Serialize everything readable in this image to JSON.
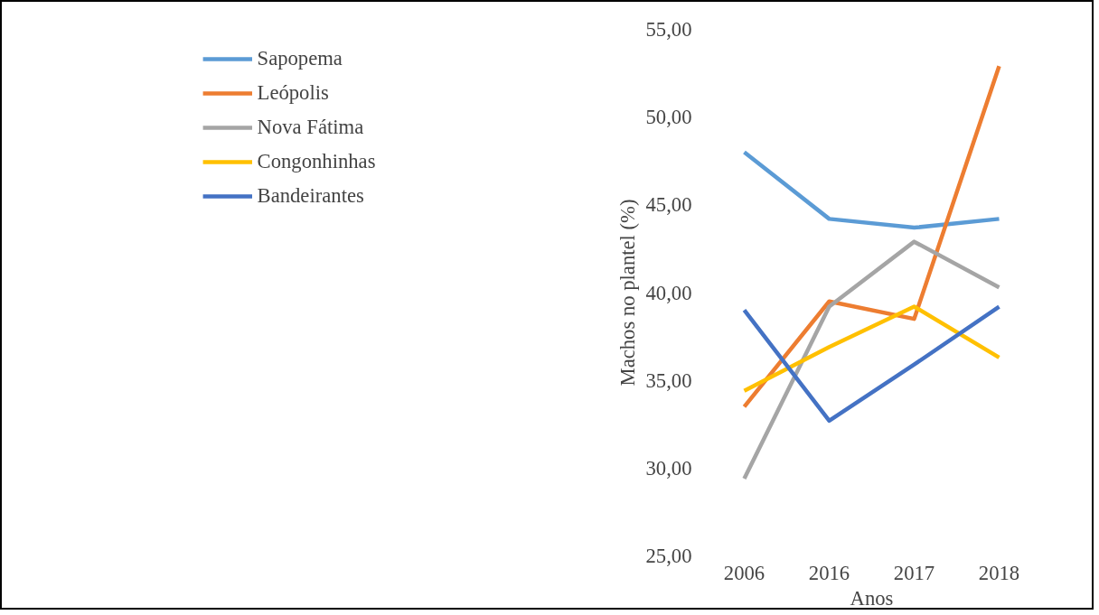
{
  "chart_data": {
    "type": "line",
    "xlabel": "Anos",
    "ylabel": "Machos no plantel (%)",
    "categories": [
      "2006",
      "2016",
      "2017",
      "2018"
    ],
    "series": [
      {
        "name": "Sapopema",
        "color": "#5b9bd5",
        "values": [
          48.0,
          44.2,
          43.7,
          44.2
        ]
      },
      {
        "name": "Leópolis",
        "color": "#ed7d31",
        "values": [
          33.5,
          39.5,
          38.5,
          52.9
        ]
      },
      {
        "name": "Nova Fátima",
        "color": "#a5a5a5",
        "values": [
          29.4,
          39.2,
          42.9,
          40.3
        ]
      },
      {
        "name": "Congonhinhas",
        "color": "#ffc000",
        "values": [
          34.4,
          36.9,
          39.2,
          36.3
        ]
      },
      {
        "name": "Bandeirantes",
        "color": "#4472c4",
        "values": [
          39.0,
          32.7,
          35.9,
          39.2
        ]
      }
    ],
    "ylim": [
      25,
      55
    ],
    "yticks": [
      {
        "value": 25,
        "label": "25,00"
      },
      {
        "value": 30,
        "label": "30,00"
      },
      {
        "value": 35,
        "label": "35,00"
      },
      {
        "value": 40,
        "label": "40,00"
      },
      {
        "value": 45,
        "label": "45,00"
      },
      {
        "value": 50,
        "label": "50,00"
      },
      {
        "value": 55,
        "label": "55,00"
      }
    ],
    "grid": false,
    "legend": "left",
    "marker": "none",
    "line_style": "solid"
  }
}
